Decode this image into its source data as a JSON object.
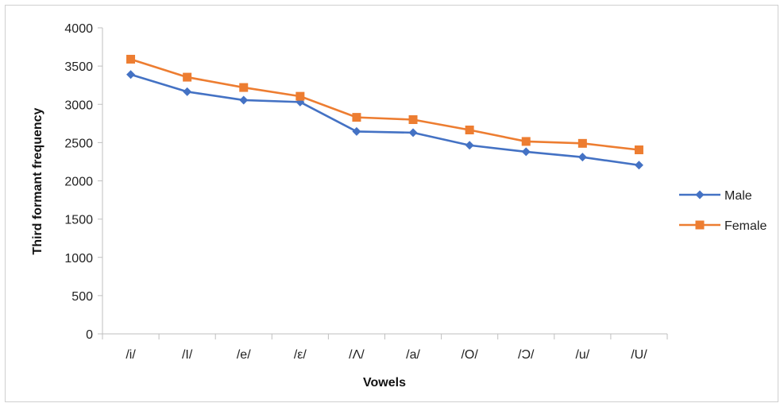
{
  "chart_data": {
    "type": "line",
    "title": "",
    "xlabel": "Vowels",
    "ylabel": "Third formant frequency",
    "categories": [
      "/i/",
      "/I/",
      "/e/",
      "/ε/",
      "/Λ/",
      "/a/",
      "/O/",
      "/Ɔ/",
      "/u/",
      "/U/"
    ],
    "ylim": [
      0,
      4000
    ],
    "yticks": [
      "0",
      "500",
      "1000",
      "1500",
      "2000",
      "2500",
      "3000",
      "3500",
      "4000"
    ],
    "grid": false,
    "legend_position": "right",
    "series": [
      {
        "name": "Male",
        "color": "#4472C4",
        "marker": "diamond",
        "values": [
          3390,
          3165,
          3055,
          3030,
          2645,
          2630,
          2465,
          2380,
          2310,
          2205
        ]
      },
      {
        "name": "Female",
        "color": "#ED7D31",
        "marker": "square",
        "values": [
          3590,
          3355,
          3220,
          3105,
          2830,
          2800,
          2665,
          2515,
          2490,
          2405
        ]
      }
    ]
  }
}
